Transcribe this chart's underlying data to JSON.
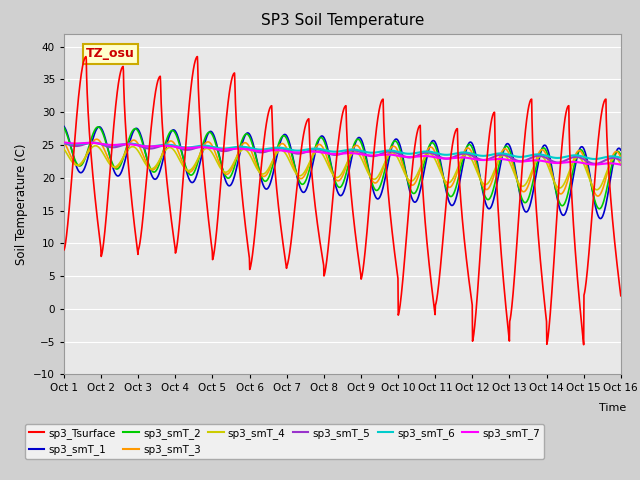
{
  "title": "SP3 Soil Temperature",
  "xlabel": "Time",
  "ylabel": "Soil Temperature (C)",
  "ylim": [
    -10,
    42
  ],
  "yticks": [
    -10,
    -5,
    0,
    5,
    10,
    15,
    20,
    25,
    30,
    35,
    40
  ],
  "xlim": [
    0,
    15
  ],
  "xtick_labels": [
    "Oct 1",
    "Oct 2",
    "Oct 3",
    "Oct 4",
    "Oct 5",
    "Oct 6",
    "Oct 7",
    "Oct 8",
    "Oct 9",
    "Oct 10",
    "Oct 11",
    "Oct 12",
    "Oct 13",
    "Oct 14",
    "Oct 15",
    "Oct 16"
  ],
  "xtick_positions": [
    0,
    1,
    2,
    3,
    4,
    5,
    6,
    7,
    8,
    9,
    10,
    11,
    12,
    13,
    14,
    15
  ],
  "annotation_text": "TZ_osu",
  "annotation_bg": "#ffffcc",
  "annotation_border": "#ccaa00",
  "annotation_color": "#cc0000",
  "series_colors": {
    "sp3_Tsurface": "#ff0000",
    "sp3_smT_1": "#0000cc",
    "sp3_smT_2": "#00cc00",
    "sp3_smT_3": "#ff9900",
    "sp3_smT_4": "#cccc00",
    "sp3_smT_5": "#9933cc",
    "sp3_smT_6": "#00cccc",
    "sp3_smT_7": "#ff00ff"
  },
  "fig_bg": "#d0d0d0",
  "plot_bg": "#e8e8e8",
  "grid_color": "#ffffff",
  "surface_peaks": [
    38.5,
    37,
    35.5,
    38.5,
    36,
    31,
    29,
    31,
    32,
    28,
    27.5,
    30,
    32,
    31,
    32
  ],
  "surface_nights": [
    9,
    8,
    9,
    8.5,
    7.5,
    6,
    6.5,
    5,
    4.5,
    -1,
    0.5,
    -5,
    -2,
    -5.5,
    2
  ],
  "soil_start": [
    24.5,
    25.0,
    24.0,
    23.5,
    25.2,
    25.3,
    25.4
  ],
  "soil_end": [
    19.0,
    19.5,
    20.5,
    20.5,
    22.5,
    23.0,
    22.0
  ],
  "soil_amp_start": [
    3.5,
    3.0,
    2.0,
    1.5,
    0.3,
    0.15,
    0.1
  ],
  "soil_amp_end": [
    5.5,
    4.5,
    3.5,
    2.5,
    0.5,
    0.25,
    0.15
  ]
}
